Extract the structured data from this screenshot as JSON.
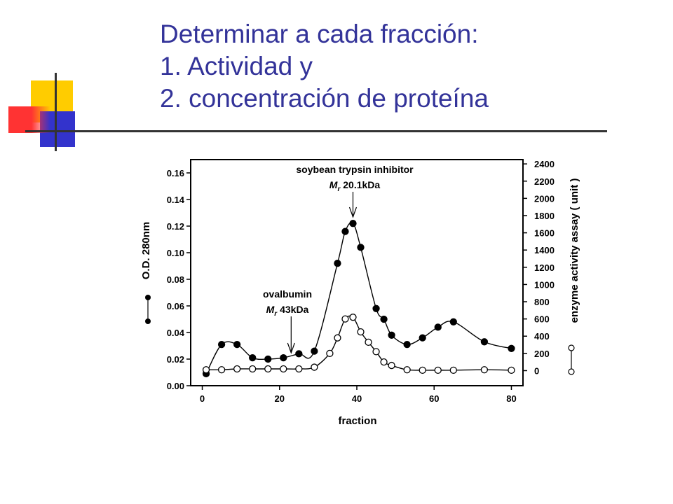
{
  "slide": {
    "title_lines": [
      "Determinar a cada fracción:",
      "1. Actividad y",
      "2. concentración de proteína"
    ],
    "title_color": "#333399"
  },
  "decoration": {
    "squares": [
      {
        "color": "#FFCC00"
      },
      {
        "color": "#3333CC"
      },
      {
        "color": "#FF3333"
      }
    ],
    "line_color": "#333333"
  },
  "chart_data": {
    "type": "line",
    "x_label": "fraction",
    "x_ticks": [
      0,
      20,
      40,
      60,
      80
    ],
    "xlim": [
      -3,
      83
    ],
    "y_left": {
      "label": "O.D. 280nm",
      "ticks": [
        "0.00",
        "0.02",
        "0.04",
        "0.06",
        "0.08",
        "0.10",
        "0.12",
        "0.14",
        "0.16"
      ],
      "lim": [
        0,
        0.17
      ]
    },
    "y_right": {
      "label": "enzyme activity assay ( unit )",
      "ticks": [
        0,
        200,
        400,
        600,
        800,
        1000,
        1200,
        1400,
        1600,
        1800,
        2000,
        2200,
        2400
      ],
      "lim": [
        -175,
        2450
      ]
    },
    "series": [
      {
        "marker": "filled-circle",
        "axis": "left",
        "points": [
          [
            1,
            0.009
          ],
          [
            5,
            0.031
          ],
          [
            9,
            0.031
          ],
          [
            13,
            0.021
          ],
          [
            17,
            0.02
          ],
          [
            21,
            0.021
          ],
          [
            25,
            0.024
          ],
          [
            29,
            0.026
          ],
          [
            35,
            0.092
          ],
          [
            37,
            0.116
          ],
          [
            39,
            0.122
          ],
          [
            41,
            0.104
          ],
          [
            45,
            0.058
          ],
          [
            47,
            0.05
          ],
          [
            49,
            0.038
          ],
          [
            53,
            0.031
          ],
          [
            57,
            0.036
          ],
          [
            61,
            0.044
          ],
          [
            65,
            0.048
          ],
          [
            73,
            0.033
          ],
          [
            80,
            0.028
          ]
        ]
      },
      {
        "marker": "open-circle",
        "axis": "right",
        "points": [
          [
            1,
            10
          ],
          [
            5,
            10
          ],
          [
            9,
            20
          ],
          [
            13,
            20
          ],
          [
            17,
            20
          ],
          [
            21,
            20
          ],
          [
            25,
            20
          ],
          [
            29,
            40
          ],
          [
            33,
            200
          ],
          [
            35,
            380
          ],
          [
            37,
            600
          ],
          [
            39,
            620
          ],
          [
            41,
            450
          ],
          [
            43,
            330
          ],
          [
            45,
            220
          ],
          [
            47,
            100
          ],
          [
            49,
            60
          ],
          [
            53,
            10
          ],
          [
            57,
            5
          ],
          [
            61,
            5
          ],
          [
            65,
            5
          ],
          [
            73,
            10
          ],
          [
            80,
            5
          ]
        ]
      }
    ],
    "annotations": [
      {
        "text": "soybean trypsin inhibitor",
        "line2": "20.1kDa",
        "symbol": "M",
        "sub": "r",
        "arrow_x": 39
      },
      {
        "text": "ovalbumin",
        "line2": "43kDa",
        "symbol": "M",
        "sub": "r",
        "arrow_x": 23
      }
    ]
  }
}
